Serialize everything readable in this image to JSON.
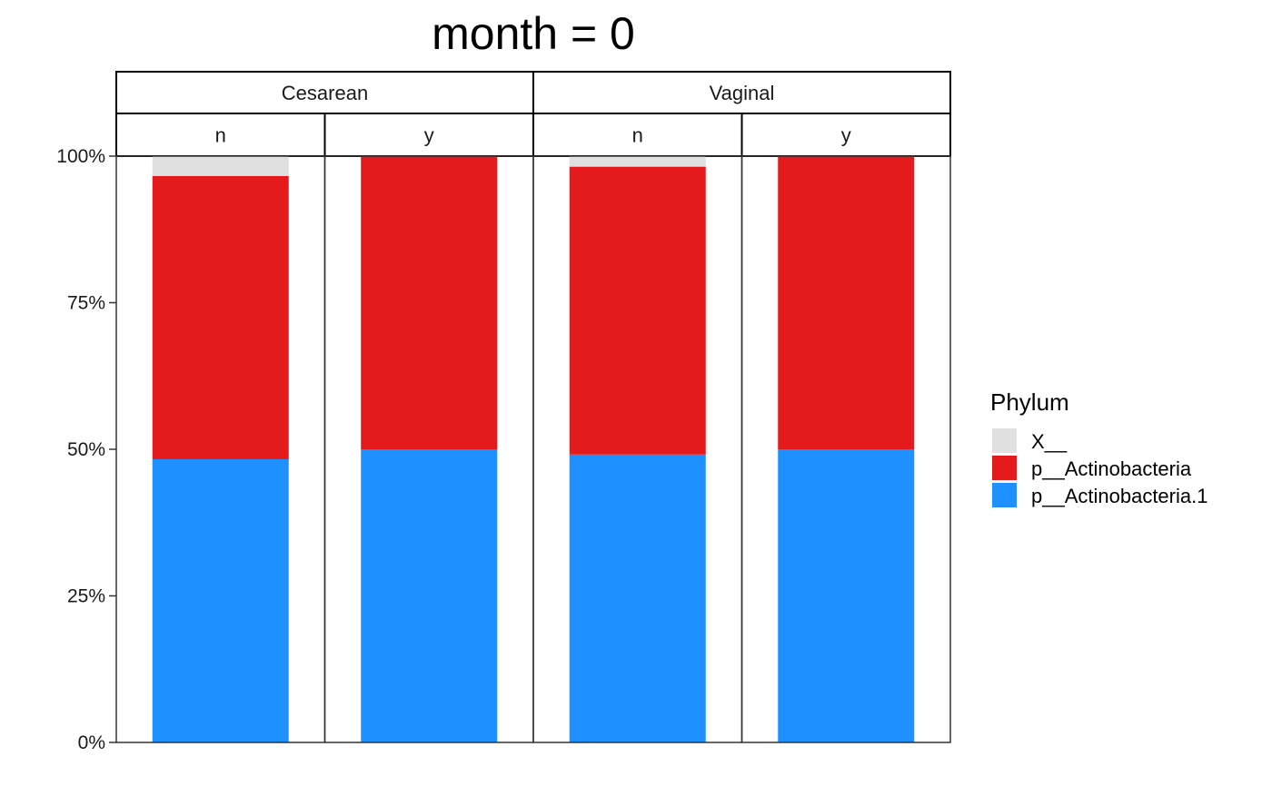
{
  "chart_data": {
    "type": "bar",
    "stacked": true,
    "title": "month = 0",
    "xlabel": "",
    "ylabel": "",
    "ylim": [
      0,
      1
    ],
    "y_ticks": [
      {
        "value": 0,
        "label": "0%"
      },
      {
        "value": 0.25,
        "label": "25%"
      },
      {
        "value": 0.5,
        "label": "50%"
      },
      {
        "value": 0.75,
        "label": "75%"
      },
      {
        "value": 1,
        "label": "100%"
      }
    ],
    "grid": false,
    "legend_position": "right",
    "facet_groups": [
      {
        "label": "Cesarean",
        "subgroups": [
          "n",
          "y"
        ]
      },
      {
        "label": "Vaginal",
        "subgroups": [
          "n",
          "y"
        ]
      }
    ],
    "categories": [
      "Cesarean / n",
      "Cesarean / y",
      "Vaginal / n",
      "Vaginal / y"
    ],
    "series": [
      {
        "name": "p__Actinobacteria.1",
        "color": "#1E90FF",
        "values": [
          0.483,
          0.5,
          0.491,
          0.5
        ]
      },
      {
        "name": "p__Actinobacteria",
        "color": "#E41A1C",
        "values": [
          0.483,
          0.5,
          0.491,
          0.5
        ]
      },
      {
        "name": "X__",
        "color": "#E0E0E0",
        "values": [
          0.034,
          0.0,
          0.018,
          0.0
        ]
      }
    ],
    "legend": {
      "title": "Phylum",
      "entries": [
        {
          "label": "X__",
          "color": "#E0E0E0"
        },
        {
          "label": "p__Actinobacteria",
          "color": "#E41A1C"
        },
        {
          "label": "p__Actinobacteria.1",
          "color": "#1E90FF"
        }
      ]
    }
  }
}
